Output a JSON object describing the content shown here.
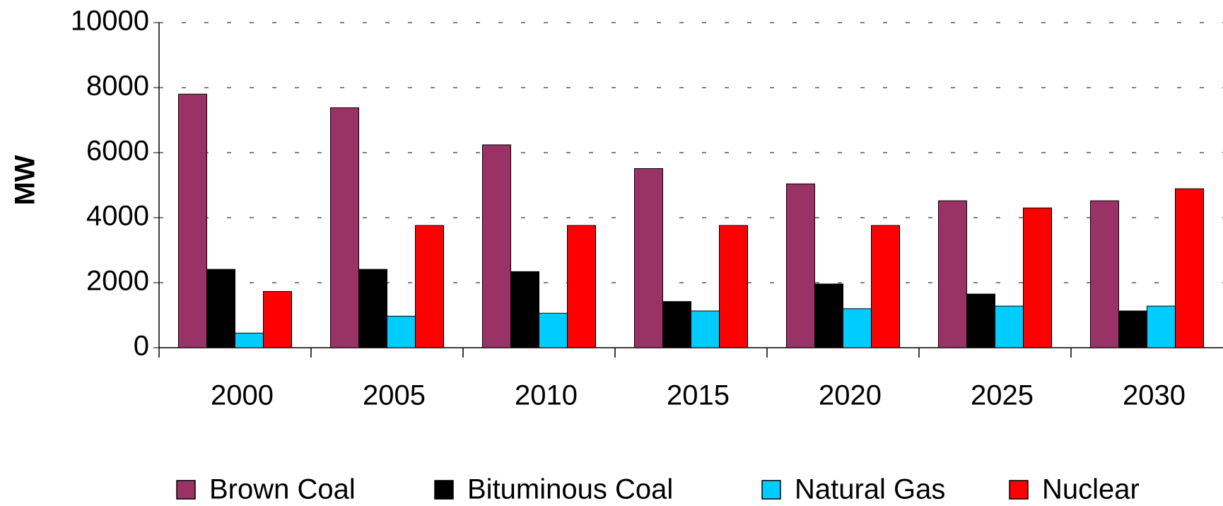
{
  "chart_data": {
    "type": "bar",
    "ylabel": "MW",
    "categories": [
      "2000",
      "2005",
      "2010",
      "2015",
      "2020",
      "2025",
      "2030"
    ],
    "series": [
      {
        "name": "Brown Coal",
        "color": "#993366",
        "values": [
          7800,
          7380,
          6240,
          5510,
          5040,
          4520,
          4520
        ]
      },
      {
        "name": "Bituminous Coal",
        "color": "#000000",
        "values": [
          2410,
          2410,
          2340,
          1420,
          1960,
          1650,
          1130
        ]
      },
      {
        "name": "Natural Gas",
        "color": "#00ccff",
        "values": [
          450,
          970,
          1060,
          1130,
          1200,
          1280,
          1280
        ]
      },
      {
        "name": "Nuclear",
        "color": "#ff0000",
        "values": [
          1730,
          3760,
          3760,
          3760,
          3760,
          4300,
          4890
        ]
      }
    ],
    "ylim": [
      0,
      10000
    ],
    "yticks": [
      0,
      2000,
      4000,
      6000,
      8000,
      10000
    ],
    "grid": true,
    "legend": "bottom"
  }
}
